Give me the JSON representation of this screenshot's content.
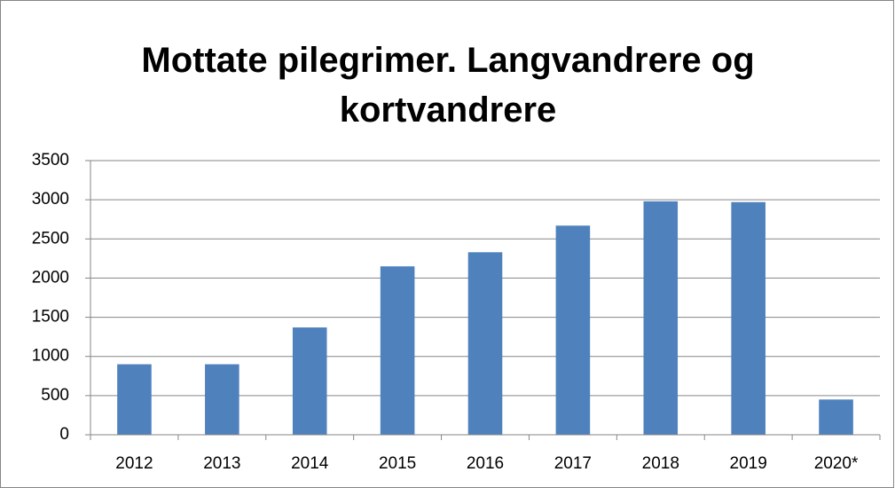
{
  "chart_data": {
    "type": "bar",
    "title": "Mottate pilegrimer. Langvandrere og kortvandrere",
    "categories": [
      "2012",
      "2013",
      "2014",
      "2015",
      "2016",
      "2017",
      "2018",
      "2019",
      "2020*"
    ],
    "values": [
      900,
      900,
      1370,
      2150,
      2330,
      2670,
      2980,
      2970,
      450
    ],
    "color": "#4f81bd",
    "ylim": [
      0,
      3500
    ],
    "yticks": [
      0,
      500,
      1000,
      1500,
      2000,
      2500,
      3000,
      3500
    ],
    "grid": true
  }
}
